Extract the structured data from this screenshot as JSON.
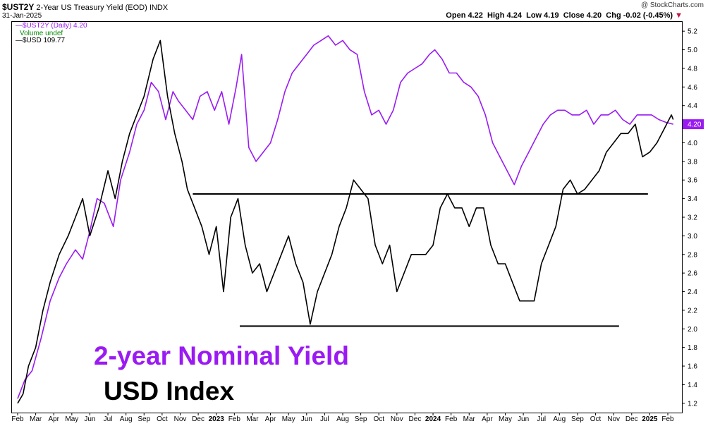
{
  "header": {
    "symbol": "$UST2Y",
    "description": "2-Year US Treasury Yield (EOD)",
    "index_tag": "INDX",
    "date": "31-Jan-2025",
    "credit": "@ StockCharts.com",
    "ohlc": {
      "open_label": "Open",
      "open": "4.22",
      "high_label": "High",
      "high": "4.24",
      "low_label": "Low",
      "low": "4.19",
      "close_label": "Close",
      "close": "4.20",
      "chg_label": "Chg",
      "chg": "-0.02 (-0.45%)",
      "chg_arrow": "▼"
    }
  },
  "legend": {
    "item1": "$UST2Y (Daily) 4.20",
    "item2": "Volume undef",
    "item3": "$USD 109.77"
  },
  "annotations": {
    "yield_label": "2-year Nominal Yield",
    "usd_label": "USD Index"
  },
  "colors": {
    "yield": "#9a1bf2",
    "usd": "#000000",
    "down": "#c0123f"
  },
  "chart_data": {
    "type": "line",
    "x_ticks": [
      "Feb",
      "Mar",
      "Apr",
      "May",
      "Jun",
      "Jul",
      "Aug",
      "Sep",
      "Oct",
      "Nov",
      "Dec",
      "2023",
      "Feb",
      "Mar",
      "Apr",
      "May",
      "Jun",
      "Jul",
      "Aug",
      "Sep",
      "Oct",
      "Nov",
      "Dec",
      "2024",
      "Feb",
      "Mar",
      "Apr",
      "May",
      "Jun",
      "Jul",
      "Aug",
      "Sep",
      "Oct",
      "Nov",
      "Dec",
      "2025",
      "Feb"
    ],
    "ylim": [
      1.1,
      5.3
    ],
    "y_ticks": [
      1.2,
      1.4,
      1.6,
      1.8,
      2.0,
      2.2,
      2.4,
      2.6,
      2.8,
      3.0,
      3.2,
      3.4,
      3.6,
      3.8,
      4.0,
      4.2,
      4.4,
      4.6,
      4.8,
      5.0,
      5.2
    ],
    "y_labels": [
      "1.2",
      "1.4",
      "1.6",
      "1.8",
      "2.0",
      "2.2",
      "2.4",
      "2.6",
      "2.8",
      "3.0",
      "3.2",
      "3.4",
      "3.6",
      "3.8",
      "4.0",
      "4.2",
      "4.4",
      "4.6",
      "4.8",
      "5.0",
      "5.2"
    ],
    "current_value_label": "4.20",
    "series": [
      {
        "name": "$UST2Y",
        "color": "#9a1bf2",
        "x": [
          0,
          0.4,
          0.8,
          1.3,
          1.8,
          2.3,
          2.7,
          3.2,
          3.6,
          4.0,
          4.4,
          4.8,
          5.3,
          5.7,
          6.2,
          6.6,
          7.0,
          7.4,
          7.8,
          8.2,
          8.6,
          8.9,
          9.3,
          9.7,
          10.1,
          10.5,
          10.9,
          11.3,
          11.7,
          12.1,
          12.4,
          12.8,
          13.2,
          13.6,
          14.0,
          14.4,
          14.8,
          15.2,
          15.6,
          16.0,
          16.4,
          16.8,
          17.2,
          17.6,
          18.0,
          18.4,
          18.8,
          19.2,
          19.6,
          20.0,
          20.4,
          20.8,
          21.2,
          21.6,
          22.0,
          22.4,
          22.8,
          23.1,
          23.5,
          23.9,
          24.3,
          24.7,
          25.1,
          25.5,
          25.9,
          26.3,
          26.7,
          27.1,
          27.5,
          27.9,
          28.3,
          28.7,
          29.1,
          29.5,
          29.9,
          30.3,
          30.7,
          31.1,
          31.5,
          31.9,
          32.3,
          32.7,
          33.1,
          33.5,
          33.9,
          34.3,
          34.7,
          35.1,
          35.5,
          35.9,
          36.3
        ],
        "y": [
          1.25,
          1.45,
          1.55,
          1.9,
          2.3,
          2.55,
          2.7,
          2.85,
          2.75,
          3.05,
          3.4,
          3.35,
          3.1,
          3.6,
          3.9,
          4.2,
          4.35,
          4.65,
          4.55,
          4.25,
          4.55,
          4.45,
          4.35,
          4.25,
          4.5,
          4.55,
          4.35,
          4.55,
          4.2,
          4.6,
          4.95,
          3.95,
          3.8,
          3.9,
          4.0,
          4.25,
          4.55,
          4.75,
          4.85,
          4.95,
          5.05,
          5.1,
          5.15,
          5.05,
          5.1,
          5.0,
          4.95,
          4.55,
          4.3,
          4.35,
          4.2,
          4.35,
          4.65,
          4.75,
          4.8,
          4.85,
          4.95,
          5.0,
          4.9,
          4.75,
          4.75,
          4.65,
          4.6,
          4.5,
          4.3,
          4.0,
          3.85,
          3.7,
          3.55,
          3.75,
          3.9,
          4.05,
          4.2,
          4.3,
          4.35,
          4.35,
          4.3,
          4.3,
          4.35,
          4.2,
          4.3,
          4.3,
          4.35,
          4.25,
          4.2,
          4.3,
          4.3,
          4.3,
          4.25,
          4.22,
          4.2
        ]
      },
      {
        "name": "$USD",
        "color": "#000000",
        "x": [
          0,
          0.3,
          0.6,
          1.0,
          1.4,
          1.8,
          2.3,
          2.8,
          3.2,
          3.6,
          4.0,
          4.5,
          5.0,
          5.4,
          5.8,
          6.2,
          6.6,
          7.0,
          7.5,
          7.9,
          8.3,
          8.7,
          9.1,
          9.4,
          9.8,
          10.2,
          10.6,
          11.0,
          11.4,
          11.8,
          12.2,
          12.6,
          13.0,
          13.4,
          13.8,
          14.2,
          14.6,
          15.0,
          15.4,
          15.8,
          16.2,
          16.6,
          17.0,
          17.4,
          17.8,
          18.2,
          18.6,
          19.0,
          19.4,
          19.8,
          20.2,
          20.6,
          21.0,
          21.4,
          21.8,
          22.2,
          22.6,
          23.0,
          23.4,
          23.8,
          24.2,
          24.6,
          25.0,
          25.4,
          25.8,
          26.2,
          26.6,
          27.0,
          27.4,
          27.8,
          28.2,
          28.6,
          29.0,
          29.4,
          29.8,
          30.2,
          30.6,
          31.0,
          31.4,
          31.8,
          32.2,
          32.6,
          33.0,
          33.4,
          33.8,
          34.2,
          34.6,
          35.0,
          35.4,
          35.8,
          36.2,
          36.3
        ],
        "y": [
          1.2,
          1.3,
          1.6,
          1.8,
          2.2,
          2.5,
          2.8,
          3.0,
          3.2,
          3.4,
          3.0,
          3.3,
          3.7,
          3.4,
          3.8,
          4.1,
          4.3,
          4.5,
          4.9,
          5.1,
          4.5,
          4.1,
          3.8,
          3.5,
          3.3,
          3.1,
          2.8,
          3.1,
          2.4,
          3.2,
          3.4,
          2.9,
          2.6,
          2.7,
          2.4,
          2.6,
          2.8,
          3.0,
          2.7,
          2.5,
          2.05,
          2.4,
          2.6,
          2.8,
          3.1,
          3.3,
          3.6,
          3.5,
          3.4,
          2.9,
          2.7,
          2.9,
          2.4,
          2.6,
          2.8,
          2.8,
          2.8,
          2.9,
          3.3,
          3.45,
          3.3,
          3.3,
          3.1,
          3.3,
          3.3,
          2.9,
          2.7,
          2.7,
          2.5,
          2.3,
          2.3,
          2.3,
          2.7,
          2.9,
          3.1,
          3.5,
          3.6,
          3.45,
          3.5,
          3.6,
          3.7,
          3.9,
          4.0,
          4.1,
          4.1,
          4.2,
          3.85,
          3.9,
          4.0,
          4.15,
          4.3,
          4.25
        ]
      }
    ],
    "reference_lines": [
      {
        "y": 3.45,
        "x_start": 9.7,
        "x_end": 34.9
      },
      {
        "y": 2.03,
        "x_start": 12.3,
        "x_end": 33.3
      }
    ]
  }
}
